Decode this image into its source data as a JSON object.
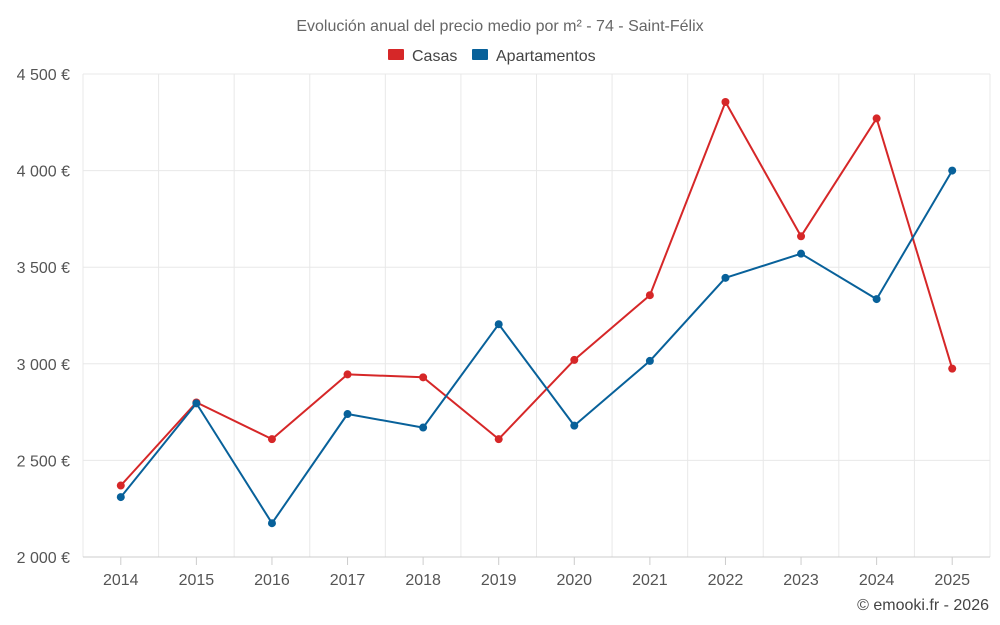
{
  "chart_data": {
    "type": "line",
    "title": "Evolución anual del precio medio por m² - 74 - Saint-Félix",
    "categories": [
      "2014",
      "2015",
      "2016",
      "2017",
      "2018",
      "2019",
      "2020",
      "2021",
      "2022",
      "2023",
      "2024",
      "2025"
    ],
    "series": [
      {
        "name": "Casas",
        "color": "#d62728",
        "values": [
          2370,
          2800,
          2610,
          2945,
          2930,
          2610,
          3020,
          3355,
          4355,
          3660,
          4270,
          2975
        ]
      },
      {
        "name": "Apartamentos",
        "color": "#08619a",
        "values": [
          2310,
          2795,
          2175,
          2740,
          2670,
          3205,
          2680,
          3015,
          3445,
          3570,
          3335,
          4000
        ]
      }
    ],
    "ylim": [
      2000,
      4500
    ],
    "yticks": [
      2000,
      2500,
      3000,
      3500,
      4000,
      4500
    ],
    "ytick_labels": [
      "2 000 €",
      "2 500 €",
      "3 000 €",
      "3 500 €",
      "4 000 €",
      "4 500 €"
    ],
    "xlabel": "",
    "ylabel": "",
    "grid": true,
    "legend_position": "top-center"
  },
  "credit": "© emooki.fr - 2026"
}
